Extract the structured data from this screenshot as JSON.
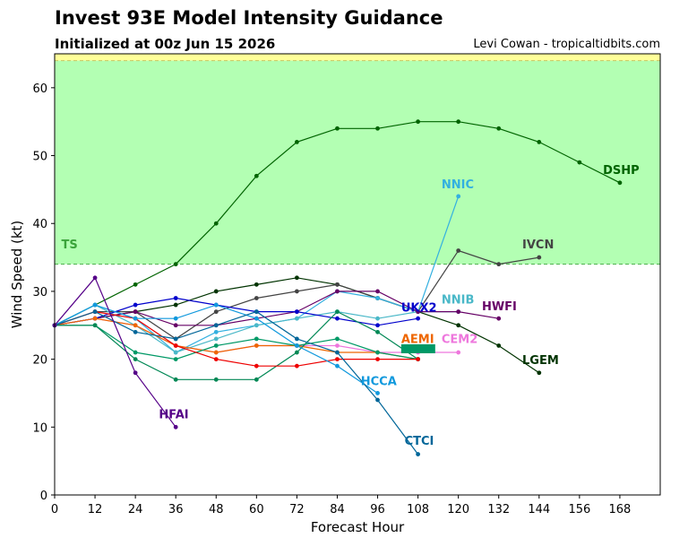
{
  "header": {
    "title": "Invest 93E Model Intensity Guidance",
    "subtitle": "Initialized at 00z Jun 15 2026",
    "credit": "Levi Cowan - tropicaltidbits.com"
  },
  "chart_data": {
    "type": "line",
    "xlabel": "Forecast Hour",
    "ylabel": "Wind Speed (kt)",
    "xlim": [
      0,
      180
    ],
    "ylim": [
      0,
      65
    ],
    "x_ticks": [
      0,
      12,
      24,
      36,
      48,
      60,
      72,
      84,
      96,
      108,
      120,
      132,
      144,
      156,
      168
    ],
    "y_ticks": [
      0,
      10,
      20,
      30,
      40,
      50,
      60
    ],
    "grid": false,
    "bands": [
      {
        "label": "TS",
        "from": 34,
        "to": 64,
        "color": "#b3ffb3",
        "edge_color": "#4cae4c"
      },
      {
        "label": "",
        "from": 64,
        "to": 65,
        "color": "#ffff99",
        "edge_color": "#c8c864"
      }
    ],
    "series": [
      {
        "name": "DSHP",
        "color": "#006400",
        "x": [
          0,
          12,
          24,
          36,
          48,
          60,
          72,
          84,
          96,
          108,
          120,
          132,
          144,
          156,
          168
        ],
        "y": [
          25,
          28,
          31,
          34,
          40,
          47,
          52,
          54,
          54,
          55,
          55,
          54,
          52,
          49,
          46
        ]
      },
      {
        "name": "LGEM",
        "color": "#003300",
        "x": [
          0,
          12,
          24,
          36,
          48,
          60,
          72,
          84,
          96,
          108,
          120,
          132,
          144
        ],
        "y": [
          25,
          26,
          27,
          28,
          30,
          31,
          32,
          31,
          29,
          27,
          25,
          22,
          18
        ]
      },
      {
        "name": "IVCN",
        "color": "#444444",
        "x": [
          0,
          12,
          24,
          36,
          48,
          60,
          72,
          84,
          96,
          108,
          120,
          132,
          144
        ],
        "y": [
          25,
          27,
          27,
          23,
          27,
          29,
          30,
          31,
          29,
          27,
          36,
          34,
          35
        ]
      },
      {
        "name": "NNIC",
        "color": "#33b0e0",
        "x": [
          0,
          12,
          24,
          36,
          48,
          60,
          72,
          84,
          96,
          108,
          120
        ],
        "y": [
          25,
          28,
          26,
          21,
          24,
          25,
          26,
          30,
          29,
          27,
          44
        ]
      },
      {
        "name": "NNIB",
        "color": "#4ab8c8",
        "x": [
          0,
          12,
          24,
          36,
          48,
          60,
          72,
          84,
          96,
          108,
          120
        ],
        "y": [
          25,
          28,
          25,
          21,
          23,
          25,
          26,
          27,
          26,
          27,
          27
        ]
      },
      {
        "name": "HWFI",
        "color": "#660066",
        "x": [
          0,
          12,
          24,
          36,
          48,
          60,
          72,
          84,
          96,
          108,
          120,
          132
        ],
        "y": [
          25,
          26,
          27,
          25,
          25,
          26,
          27,
          30,
          30,
          27,
          27,
          26
        ]
      },
      {
        "name": "UKX2",
        "color": "#0000cc",
        "x": [
          0,
          12,
          24,
          36,
          48,
          60,
          72,
          84,
          96,
          108
        ],
        "y": [
          25,
          26,
          28,
          29,
          28,
          27,
          27,
          26,
          25,
          26
        ]
      },
      {
        "name": "CEM2",
        "color": "#ee77dd",
        "x": [
          0,
          12,
          24,
          36,
          48,
          60,
          72,
          84,
          96,
          108,
          120
        ],
        "y": [
          25,
          26,
          25,
          22,
          21,
          22,
          22,
          22,
          21,
          21,
          21
        ]
      },
      {
        "name": "AEMI",
        "color": "#ee6600",
        "x": [
          0,
          12,
          24,
          36,
          48,
          60,
          72,
          84,
          96,
          108
        ],
        "y": [
          25,
          26,
          25,
          22,
          21,
          22,
          22,
          21,
          21,
          20
        ]
      },
      {
        "name": "",
        "color": "#009966",
        "x": [
          0,
          12,
          24,
          36,
          48,
          60,
          72,
          84,
          96,
          108
        ],
        "y": [
          25,
          25,
          21,
          20,
          22,
          23,
          22,
          23,
          21,
          20
        ]
      },
      {
        "name": "",
        "color": "#008855",
        "x": [
          0,
          12,
          24,
          36,
          48,
          60,
          72,
          84,
          96,
          108
        ],
        "y": [
          25,
          25,
          20,
          17,
          17,
          17,
          21,
          27,
          24,
          20
        ]
      },
      {
        "name": "",
        "color": "#ee0000",
        "x": [
          0,
          12,
          24,
          36,
          48,
          60,
          72,
          84,
          96,
          108
        ],
        "y": [
          25,
          27,
          26,
          22,
          20,
          19,
          19,
          20,
          20,
          20
        ]
      },
      {
        "name": "HCCA",
        "color": "#1199dd",
        "x": [
          0,
          12,
          24,
          36,
          48,
          60,
          72,
          84,
          96
        ],
        "y": [
          25,
          28,
          26,
          26,
          28,
          26,
          22,
          19,
          15
        ]
      },
      {
        "name": "CTCI",
        "color": "#006699",
        "x": [
          0,
          12,
          24,
          36,
          48,
          60,
          72,
          84,
          96,
          108
        ],
        "y": [
          25,
          27,
          24,
          23,
          25,
          27,
          23,
          21,
          14,
          6
        ]
      },
      {
        "name": "HFAI",
        "color": "#550088",
        "x": [
          0,
          12,
          24,
          36
        ],
        "y": [
          25,
          32,
          18,
          10
        ]
      }
    ],
    "annotations": [
      {
        "text": "DSHP",
        "x": 163,
        "y": 47.3,
        "color": "#006400"
      },
      {
        "text": "NNIC",
        "x": 115,
        "y": 45.2,
        "color": "#33b0e0"
      },
      {
        "text": "IVCN",
        "x": 139,
        "y": 36.3,
        "color": "#444444"
      },
      {
        "text": "TS",
        "x": 2,
        "y": 36.3,
        "color": "#3aa33a"
      },
      {
        "text": "NNIB",
        "x": 115,
        "y": 28.2,
        "color": "#4ab8c8"
      },
      {
        "text": "HWFI",
        "x": 127,
        "y": 27.2,
        "color": "#660066"
      },
      {
        "text": "UKX2",
        "x": 103,
        "y": 27.0,
        "color": "#0000cc"
      },
      {
        "text": "AEMI",
        "x": 103,
        "y": 22.4,
        "color": "#ee6600"
      },
      {
        "text": "CEM2",
        "x": 115,
        "y": 22.4,
        "color": "#ee77dd"
      },
      {
        "text": "LGEM",
        "x": 139,
        "y": 19.3,
        "color": "#003300"
      },
      {
        "text": "HCCA",
        "x": 91,
        "y": 16.2,
        "color": "#1199dd"
      },
      {
        "text": "HFAI",
        "x": 31,
        "y": 11.3,
        "color": "#550088"
      },
      {
        "text": "CTCI",
        "x": 104,
        "y": 7.4,
        "color": "#006699"
      }
    ]
  }
}
